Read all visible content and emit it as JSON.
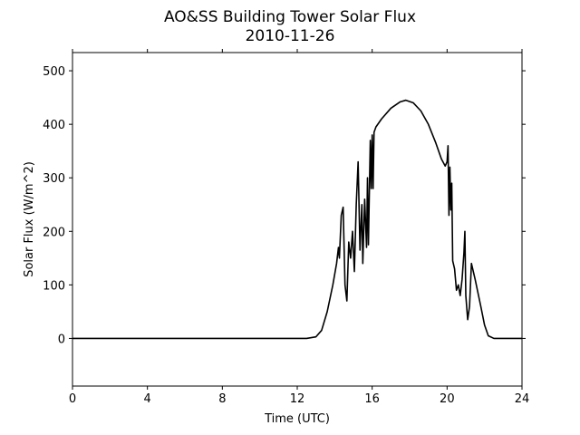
{
  "chart_data": {
    "type": "line",
    "title": "AO&SS Building Tower Solar Flux",
    "subtitle": "2010-11-26",
    "x_label": "Time (UTC)",
    "y_label": "Solar Flux (W/m^2)",
    "x": [
      0,
      12.5,
      13,
      13.3,
      13.6,
      13.9,
      14.1,
      14.2,
      14.25,
      14.35,
      14.45,
      14.55,
      14.65,
      14.75,
      14.85,
      14.95,
      15.05,
      15.15,
      15.25,
      15.35,
      15.45,
      15.5,
      15.6,
      15.7,
      15.75,
      15.8,
      15.9,
      15.95,
      16.0,
      16.05,
      16.1,
      16.2,
      16.5,
      17,
      17.5,
      17.8,
      18.2,
      18.6,
      19,
      19.4,
      19.7,
      19.9,
      20.0,
      20.05,
      20.1,
      20.15,
      20.2,
      20.25,
      20.3,
      20.4,
      20.5,
      20.6,
      20.7,
      20.8,
      20.9,
      20.95,
      21.0,
      21.1,
      21.2,
      21.3,
      21.5,
      21.8,
      22.0,
      22.2,
      22.5,
      24
    ],
    "series": [
      {
        "name": "Solar Flux",
        "color": "#000000",
        "values": [
          0,
          0,
          3,
          15,
          50,
          100,
          140,
          170,
          150,
          230,
          245,
          100,
          70,
          180,
          150,
          200,
          125,
          250,
          330,
          165,
          250,
          140,
          260,
          170,
          300,
          175,
          370,
          280,
          380,
          280,
          385,
          395,
          410,
          430,
          442,
          445,
          440,
          425,
          400,
          365,
          335,
          322,
          330,
          360,
          230,
          320,
          240,
          290,
          145,
          130,
          90,
          100,
          80,
          110,
          160,
          200,
          80,
          35,
          60,
          140,
          110,
          60,
          25,
          5,
          0,
          0
        ]
      }
    ],
    "xlim": [
      0,
      24
    ],
    "xticks": [
      0,
      4,
      8,
      12,
      16,
      20,
      24
    ],
    "ylim": [
      -89,
      534
    ],
    "yticks": [
      0,
      100,
      200,
      300,
      400,
      500
    ],
    "grid": false
  }
}
